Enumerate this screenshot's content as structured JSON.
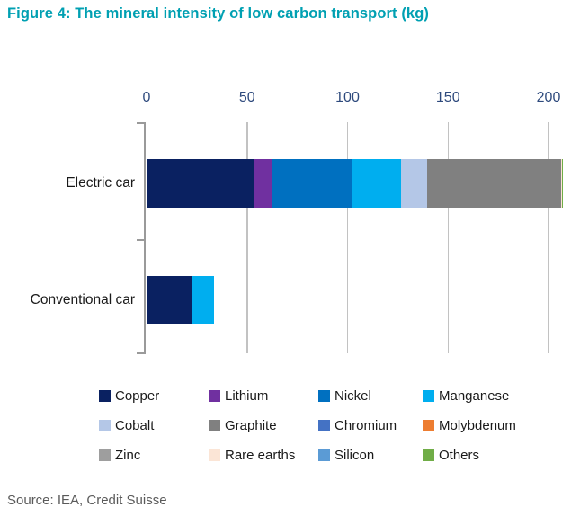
{
  "title": "Figure 4: The mineral intensity of low carbon transport (kg)",
  "source": "Source: IEA, Credit Suisse",
  "colors": {
    "title_teal": "#00A0B2",
    "axis_label_blue": "#2E4A7D",
    "gridline_gray": "#C2C2C2",
    "axis_gray": "#9A9A9A",
    "text_dark": "#1a1a1a",
    "source_gray": "#5a5a5a"
  },
  "chart_data": {
    "type": "bar",
    "orientation": "horizontal",
    "stacked": true,
    "title": "Figure 4: The mineral intensity of low carbon transport (kg)",
    "unit": "kg",
    "categories": [
      "Electric car",
      "Conventional car"
    ],
    "series": [
      {
        "name": "Copper",
        "color": "#0A2161",
        "values": [
          53.2,
          22.3
        ]
      },
      {
        "name": "Lithium",
        "color": "#7030A0",
        "values": [
          8.9,
          0
        ]
      },
      {
        "name": "Nickel",
        "color": "#0070C0",
        "values": [
          39.9,
          0
        ]
      },
      {
        "name": "Manganese",
        "color": "#00AEEF",
        "values": [
          24.5,
          11.2
        ]
      },
      {
        "name": "Cobalt",
        "color": "#B4C7E7",
        "values": [
          13.3,
          0
        ]
      },
      {
        "name": "Graphite",
        "color": "#808080",
        "values": [
          66.3,
          0
        ]
      },
      {
        "name": "Chromium",
        "color": "#4472C4",
        "values": [
          0,
          0
        ]
      },
      {
        "name": "Molybdenum",
        "color": "#ED7D31",
        "values": [
          0,
          0
        ]
      },
      {
        "name": "Zinc",
        "color": "#9E9E9E",
        "values": [
          0.1,
          0
        ]
      },
      {
        "name": "Rare earths",
        "color": "#FBE5D6",
        "values": [
          0.5,
          0
        ]
      },
      {
        "name": "Silicon",
        "color": "#5B9BD5",
        "values": [
          0,
          0
        ]
      },
      {
        "name": "Others",
        "color": "#70AD47",
        "values": [
          0.3,
          0
        ]
      }
    ],
    "xlim": [
      0,
      200
    ],
    "x_ticks": [
      0,
      50,
      100,
      150,
      200
    ],
    "grid": true,
    "legend_position": "bottom",
    "legend_columns": 4
  }
}
